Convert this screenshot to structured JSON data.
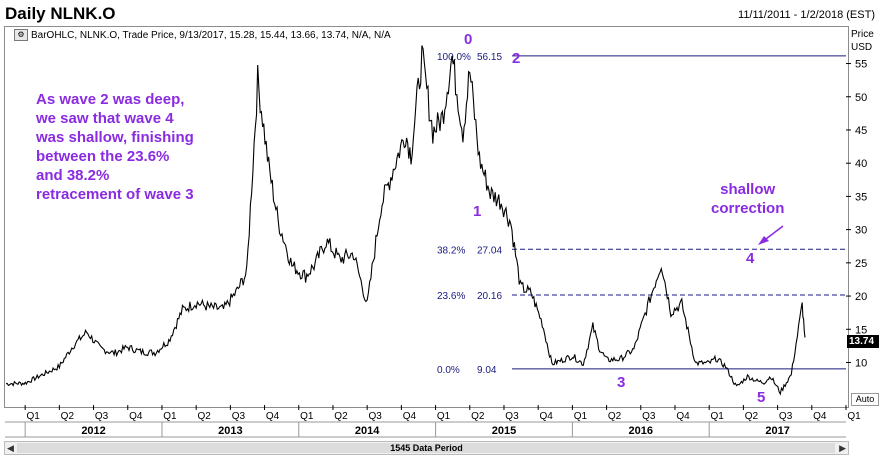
{
  "header": {
    "title": "Daily NLNK.O",
    "date_range": "11/11/2011 - 1/2/2018 (EST)"
  },
  "legend": {
    "text": "BarOHLC, NLNK.O, Trade Price, 9/13/2017, 15.28, 15.44, 13.66, 13.74, N/A, N/A"
  },
  "axis": {
    "price_label_1": "Price",
    "price_label_2": "USD",
    "last_value": "13.74",
    "auto_label": "Auto"
  },
  "annotations": {
    "note_lines": [
      "As wave 2 was deep,",
      "we saw that wave 4",
      "was shallow, finishing",
      "between the 23.6%",
      "and 38.2%",
      "retracement of wave 3"
    ],
    "shallow_lines": [
      "shallow",
      "correction"
    ],
    "waves": [
      "0",
      "1",
      "2",
      "3",
      "4",
      "5"
    ]
  },
  "scrollbar": {
    "label": "1545 Data Period"
  },
  "colors": {
    "annotation": "#8a2be2",
    "fib_line": "#1a1a80",
    "price_line": "#000000"
  },
  "chart_data": {
    "type": "line",
    "y_ticks": [
      10,
      15,
      20,
      25,
      30,
      35,
      40,
      45,
      50,
      55
    ],
    "ylim": [
      3.6,
      60.5
    ],
    "quarter_ticks": [
      "Q1",
      "Q2",
      "Q3",
      "Q4",
      "Q1",
      "Q2",
      "Q3",
      "Q4",
      "Q1",
      "Q2",
      "Q3",
      "Q4",
      "Q1",
      "Q2",
      "Q3",
      "Q4",
      "Q1",
      "Q2",
      "Q3",
      "Q4",
      "Q1",
      "Q2",
      "Q3",
      "Q4",
      "Q1"
    ],
    "year_labels": [
      "2012",
      "2013",
      "2014",
      "2015",
      "2016",
      "2017"
    ],
    "fib_levels": [
      {
        "pct": "100.0%",
        "value": 56.15,
        "value_label": "56.15"
      },
      {
        "pct": "38.2%",
        "value": 27.04,
        "value_label": "27.04"
      },
      {
        "pct": "23.6%",
        "value": 20.16,
        "value_label": "20.16"
      },
      {
        "pct": "0.0%",
        "value": 9.04,
        "value_label": "9.04"
      }
    ],
    "series": [
      {
        "x": [
          2011.86,
          2012.0,
          2012.15,
          2012.25,
          2012.35,
          2012.45,
          2012.55,
          2012.65,
          2012.75,
          2012.85,
          2012.95,
          2013.05,
          2013.15,
          2013.25,
          2013.35,
          2013.45,
          2013.55,
          2013.62,
          2013.7,
          2013.78,
          2013.85,
          2013.95,
          2014.05,
          2014.12,
          2014.2,
          2014.3,
          2014.4,
          2014.5,
          2014.6,
          2014.7,
          2014.78,
          2014.82,
          2014.9,
          2014.98,
          2015.05,
          2015.12,
          2015.2,
          2015.25,
          2015.32,
          2015.4,
          2015.48,
          2015.55,
          2015.62,
          2015.7,
          2015.78,
          2015.85,
          2015.92,
          2016.0,
          2016.08,
          2016.15,
          2016.2,
          2016.25,
          2016.35,
          2016.45,
          2016.55,
          2016.65,
          2016.72,
          2016.8,
          2016.9,
          2017.0,
          2017.05,
          2017.12,
          2017.2,
          2017.28,
          2017.35,
          2017.4,
          2017.45,
          2017.52,
          2017.6,
          2017.68,
          2017.7
        ],
        "y": [
          6.8,
          6.9,
          8.4,
          9.4,
          12.5,
          14.6,
          12.1,
          11.4,
          12.3,
          11.6,
          11.5,
          13.3,
          17.9,
          19.0,
          18.3,
          18.0,
          20.8,
          23.6,
          52.6,
          39.5,
          31.2,
          24.6,
          23.0,
          24.8,
          28.3,
          25.5,
          26.4,
          18.7,
          33.5,
          39.7,
          44.5,
          41.3,
          56.0,
          44.7,
          46.9,
          56.0,
          44.7,
          53.8,
          40.6,
          35.5,
          34.2,
          31.0,
          21.4,
          20.4,
          15.9,
          9.8,
          10.3,
          11.0,
          9.8,
          15.4,
          12.0,
          10.4,
          10.5,
          12.0,
          18.5,
          24.9,
          17.6,
          18.8,
          9.9,
          9.9,
          10.6,
          9.4,
          6.3,
          7.9,
          7.2,
          7.0,
          7.9,
          5.5,
          8.2,
          18.7,
          13.74
        ]
      }
    ]
  }
}
